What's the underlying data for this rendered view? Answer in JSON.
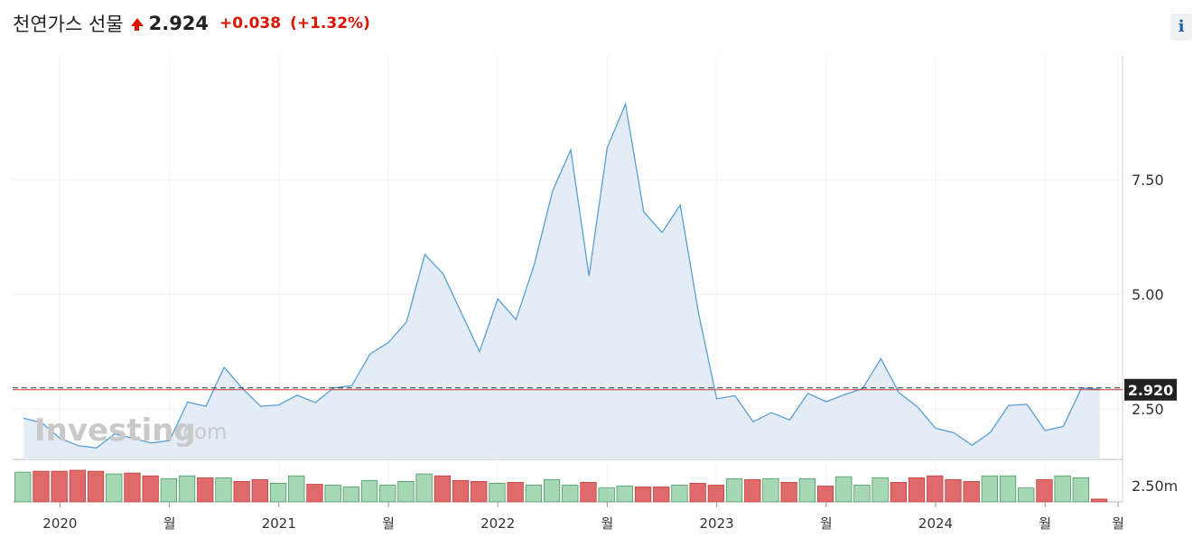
{
  "header": {
    "title": "천연가스 선물",
    "price": "2.924",
    "change": "+0.038",
    "change_pct": "(+1.32%)",
    "direction": "up",
    "info_icon_label": "i"
  },
  "watermark": {
    "brand": "Investing",
    "suffix": ".com"
  },
  "colors": {
    "line": "#5a9fd4",
    "area": "#e4edf6",
    "volume_up": "#a6d8b6",
    "volume_down": "#e06a6a",
    "current_price_line": "#c23b3b",
    "current_price_badge": "#222222"
  },
  "chart_data": {
    "type": "area",
    "ylim": [
      1.4,
      10.2
    ],
    "y_ticks": [
      {
        "value": 7.5,
        "label": "7.50"
      },
      {
        "value": 5.0,
        "label": "5.00"
      },
      {
        "value": 2.5,
        "label": "2.50"
      }
    ],
    "current_price": {
      "value": 2.92,
      "label": "2.920"
    },
    "x_ticks": [
      {
        "index": 2,
        "label": "2020"
      },
      {
        "index": 8,
        "label": "월"
      },
      {
        "index": 14,
        "label": "2021"
      },
      {
        "index": 20,
        "label": "월"
      },
      {
        "index": 26,
        "label": "2022"
      },
      {
        "index": 32,
        "label": "월"
      },
      {
        "index": 38,
        "label": "2023"
      },
      {
        "index": 44,
        "label": "월"
      },
      {
        "index": 50,
        "label": "2024"
      },
      {
        "index": 56,
        "label": "월"
      },
      {
        "index": 60,
        "label": "월"
      }
    ],
    "values": [
      2.3,
      2.2,
      1.86,
      1.7,
      1.65,
      1.96,
      1.86,
      1.76,
      1.81,
      2.65,
      2.56,
      3.41,
      2.95,
      2.56,
      2.59,
      2.8,
      2.64,
      2.96,
      3.01,
      3.7,
      3.95,
      4.4,
      5.87,
      5.45,
      4.6,
      3.75,
      4.9,
      4.45,
      5.65,
      7.25,
      8.15,
      5.4,
      8.2,
      9.15,
      6.8,
      6.35,
      6.95,
      4.6,
      2.72,
      2.79,
      2.22,
      2.42,
      2.26,
      2.84,
      2.66,
      2.81,
      2.95,
      3.6,
      2.85,
      2.55,
      2.08,
      1.98,
      1.71,
      1.99,
      2.58,
      2.6,
      2.03,
      2.12,
      2.96,
      2.93
    ],
    "volume_label": "2.50m",
    "volume_max": 3.5,
    "volumes": [
      3.2,
      3.3,
      3.3,
      3.4,
      3.3,
      3.0,
      3.1,
      2.8,
      2.5,
      2.8,
      2.6,
      2.6,
      2.2,
      2.4,
      2.0,
      2.8,
      1.9,
      1.8,
      1.6,
      2.3,
      1.8,
      2.2,
      3.0,
      2.8,
      2.3,
      2.2,
      2.0,
      2.1,
      1.8,
      2.4,
      1.8,
      2.1,
      1.5,
      1.7,
      1.6,
      1.6,
      1.8,
      2.0,
      1.8,
      2.5,
      2.4,
      2.5,
      2.1,
      2.5,
      1.7,
      2.7,
      1.8,
      2.6,
      2.1,
      2.6,
      2.8,
      2.4,
      2.2,
      2.8,
      2.8,
      1.5,
      2.4,
      2.8,
      2.6,
      0.3
    ],
    "volume_up": [
      true,
      false,
      false,
      false,
      false,
      true,
      false,
      false,
      true,
      true,
      false,
      true,
      false,
      false,
      true,
      true,
      false,
      true,
      true,
      true,
      true,
      true,
      true,
      false,
      false,
      false,
      true,
      false,
      true,
      true,
      true,
      false,
      true,
      true,
      false,
      false,
      true,
      false,
      false,
      true,
      false,
      true,
      false,
      true,
      false,
      true,
      true,
      true,
      false,
      false,
      false,
      false,
      false,
      true,
      true,
      true,
      false,
      true,
      true,
      false
    ]
  }
}
